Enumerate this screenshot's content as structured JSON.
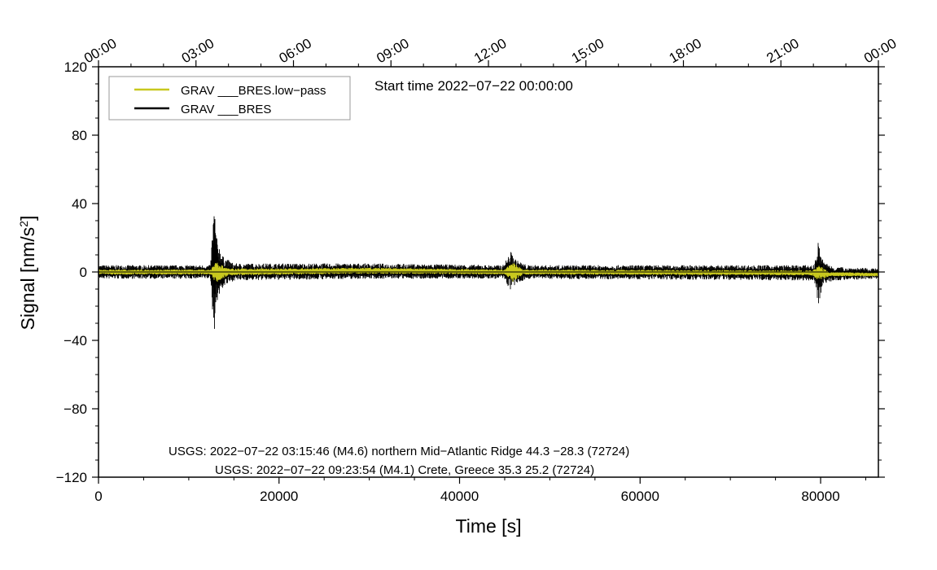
{
  "chart_data": {
    "type": "line",
    "title": "",
    "xlabel": "Time [s]",
    "ylabel_main": "Signal [nm/s",
    "ylabel_sup": "2",
    "ylabel_tail": "]",
    "xlim": [
      0,
      86400
    ],
    "ylim": [
      -120,
      120
    ],
    "x_ticks": [
      0,
      20000,
      40000,
      60000,
      80000
    ],
    "x_tick_labels": [
      "0",
      "20000",
      "40000",
      "60000",
      "80000"
    ],
    "y_ticks": [
      120,
      80,
      40,
      0,
      -40,
      -80,
      -120
    ],
    "y_tick_labels": [
      "120",
      "80",
      "40",
      "0",
      "−40",
      "−80",
      "−120"
    ],
    "top_axis_labels": [
      "00:00",
      "03:00",
      "06:00",
      "09:00",
      "12:00",
      "15:00",
      "18:00",
      "21:00",
      "00:00"
    ],
    "start_time_text": "Start time 2022−07−22 00:00:00",
    "legend_placement": "top-left",
    "series": [
      {
        "name": "GRAV ___BRES.low−pass",
        "color": "#c8c81e",
        "envelope": [
          {
            "x": 0,
            "lo": -1.5,
            "hi": 1.5
          },
          {
            "x": 12500,
            "lo": -1.5,
            "hi": 1.5
          },
          {
            "x": 12900,
            "lo": -7,
            "hi": 7
          },
          {
            "x": 13300,
            "lo": -5,
            "hi": 5
          },
          {
            "x": 14500,
            "lo": -2,
            "hi": 2
          },
          {
            "x": 30000,
            "lo": -1,
            "hi": 2.5
          },
          {
            "x": 45000,
            "lo": -1.5,
            "hi": 1.5
          },
          {
            "x": 45900,
            "lo": -6,
            "hi": 6
          },
          {
            "x": 47000,
            "lo": -1.5,
            "hi": 1.5
          },
          {
            "x": 79000,
            "lo": -2,
            "hi": 1
          },
          {
            "x": 79800,
            "lo": -5,
            "hi": 4
          },
          {
            "x": 81000,
            "lo": -2.5,
            "hi": 0
          },
          {
            "x": 86400,
            "lo": -2.5,
            "hi": -0.5
          }
        ]
      },
      {
        "name": "GRAV ___BRES",
        "color": "#000000",
        "envelope": [
          {
            "x": 0,
            "lo": -4,
            "hi": 4
          },
          {
            "x": 12400,
            "lo": -4,
            "hi": 4
          },
          {
            "x": 12800,
            "lo": -37,
            "hi": 41
          },
          {
            "x": 13100,
            "lo": -18,
            "hi": 20
          },
          {
            "x": 13800,
            "lo": -9,
            "hi": 9
          },
          {
            "x": 15000,
            "lo": -5,
            "hi": 5
          },
          {
            "x": 30000,
            "lo": -4,
            "hi": 5
          },
          {
            "x": 44800,
            "lo": -4,
            "hi": 4
          },
          {
            "x": 45700,
            "lo": -11,
            "hi": 12
          },
          {
            "x": 46300,
            "lo": -7,
            "hi": 7
          },
          {
            "x": 47500,
            "lo": -4,
            "hi": 4
          },
          {
            "x": 79300,
            "lo": -5,
            "hi": 4
          },
          {
            "x": 79700,
            "lo": -20,
            "hi": 18
          },
          {
            "x": 80300,
            "lo": -7,
            "hi": 6
          },
          {
            "x": 81500,
            "lo": -5,
            "hi": 3
          },
          {
            "x": 86400,
            "lo": -4,
            "hi": 2
          }
        ]
      }
    ],
    "events": [
      {
        "text": "USGS: 2022−07−22 03:15:46 (M4.6) northern Mid−Atlantic Ridge 44.3 −28.3 (72724)"
      },
      {
        "text": "USGS: 2022−07−22 09:23:54 (M4.1) Crete, Greece 35.3 25.2 (72724)"
      }
    ],
    "zero_line": true,
    "grid": false
  }
}
